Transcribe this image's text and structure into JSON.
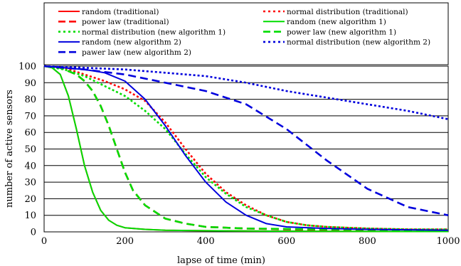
{
  "chart_data": {
    "type": "line",
    "title": "",
    "xlabel": "lapse of time (min)",
    "ylabel": "number of active sensors",
    "xlim": [
      0,
      1000
    ],
    "ylim": [
      0,
      100
    ],
    "x_ticks": [
      0,
      200,
      400,
      600,
      800,
      1000
    ],
    "y_ticks": [
      0,
      10,
      20,
      30,
      40,
      50,
      60,
      70,
      80,
      90,
      100
    ],
    "grid": "horizontal",
    "legend_position": "top",
    "series": [
      {
        "name": "random (traditional)",
        "color": "#ff0000",
        "style": "solid",
        "x": [
          0,
          20,
          40,
          60,
          80,
          100,
          120,
          140,
          160,
          180,
          200,
          250,
          300,
          400,
          500,
          700,
          1000
        ],
        "y": [
          100,
          99,
          95,
          82,
          62,
          40,
          24,
          13,
          7,
          4,
          2.5,
          1.5,
          1,
          0.7,
          0.5,
          0.3,
          0.2
        ]
      },
      {
        "name": "normal distribution (traditional)",
        "color": "#ff0000",
        "style": "dotted",
        "x": [
          0,
          50,
          100,
          150,
          200,
          250,
          300,
          350,
          400,
          450,
          500,
          550,
          600,
          650,
          700,
          800,
          900,
          1000
        ],
        "y": [
          100,
          99,
          95,
          91,
          86,
          79,
          66,
          50,
          35,
          24,
          16,
          10,
          6,
          4,
          3,
          2,
          1.5,
          1.5
        ]
      },
      {
        "name": "power law (traditional)",
        "color": "#ff0000",
        "style": "dash",
        "x": [
          0,
          40,
          80,
          100,
          120,
          140,
          160,
          180,
          200,
          220,
          250,
          300,
          350,
          400,
          500,
          700,
          1000
        ],
        "y": [
          100,
          99,
          95,
          91,
          85,
          76,
          64,
          50,
          36,
          25,
          16,
          8,
          5,
          3,
          2,
          1,
          0.5
        ]
      },
      {
        "name": "random (new algorithm 1)",
        "color": "#00dd00",
        "style": "solid",
        "x": [
          0,
          20,
          40,
          60,
          80,
          100,
          120,
          140,
          160,
          180,
          200,
          250,
          300,
          400,
          500,
          700,
          1000
        ],
        "y": [
          100,
          99,
          95,
          82,
          62,
          40,
          24,
          13,
          7,
          4,
          2.5,
          1.5,
          1,
          0.7,
          0.5,
          0.3,
          0.2
        ]
      },
      {
        "name": "normal distribution (new algorithm 1)",
        "color": "#00dd00",
        "style": "dotted",
        "x": [
          0,
          50,
          100,
          150,
          200,
          250,
          300,
          350,
          400,
          450,
          500,
          550,
          600,
          650,
          700,
          800,
          900,
          1000
        ],
        "y": [
          100,
          98,
          94,
          88,
          82,
          73,
          62,
          47,
          33,
          23,
          15,
          10,
          6,
          4,
          3,
          2,
          1.5,
          1.5
        ]
      },
      {
        "name": "power law (new algorithm 1)",
        "color": "#00dd00",
        "style": "dash",
        "x": [
          0,
          40,
          80,
          100,
          120,
          140,
          160,
          180,
          200,
          220,
          250,
          300,
          350,
          400,
          500,
          700,
          1000
        ],
        "y": [
          100,
          99,
          95,
          91,
          85,
          76,
          64,
          50,
          36,
          25,
          16,
          8,
          5,
          3,
          2,
          1.5,
          1
        ]
      },
      {
        "name": "random (new algorithm 2)",
        "color": "#0000dd",
        "style": "solid",
        "x": [
          0,
          50,
          100,
          150,
          200,
          250,
          300,
          350,
          400,
          450,
          500,
          550,
          600,
          700,
          800,
          1000
        ],
        "y": [
          100,
          99,
          98,
          96,
          91,
          80,
          64,
          46,
          30,
          18,
          10,
          5,
          3,
          2,
          1.5,
          1
        ]
      },
      {
        "name": "normal distribution (new algorithm 2)",
        "color": "#0000dd",
        "style": "dotted",
        "x": [
          0,
          100,
          200,
          300,
          400,
          500,
          600,
          700,
          800,
          900,
          1000
        ],
        "y": [
          100,
          99,
          98,
          96,
          94,
          90,
          85,
          81,
          77,
          73,
          68
        ]
      },
      {
        "name": "pawer law (new algorithm 2)",
        "color": "#0000dd",
        "style": "dash",
        "x": [
          0,
          100,
          200,
          300,
          400,
          500,
          600,
          700,
          800,
          900,
          1000
        ],
        "y": [
          100,
          98,
          95,
          90,
          85,
          77,
          62,
          43,
          26,
          15,
          10
        ]
      }
    ]
  }
}
